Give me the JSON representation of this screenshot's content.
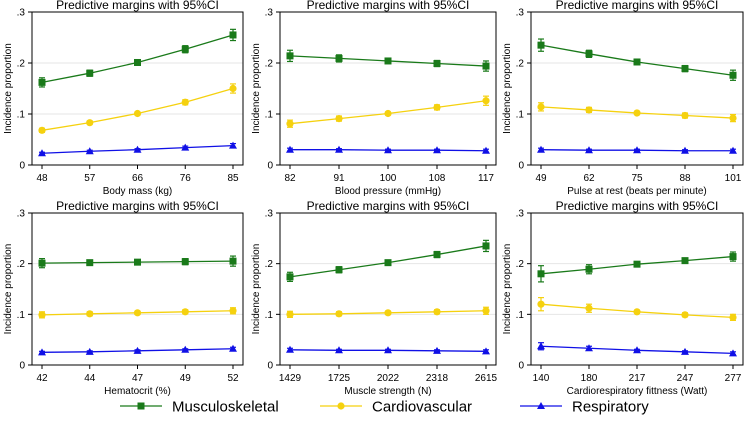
{
  "chart_data": [
    {
      "type": "line",
      "title": "Predictive margins with 95%CI",
      "xlabel": "Body mass (kg)",
      "ylabel": "Incidence proportion",
      "categories": [
        "48",
        "57",
        "66",
        "76",
        "85"
      ],
      "ylim": [
        0,
        0.3
      ],
      "yticks": [
        0,
        0.1,
        0.2,
        0.3
      ],
      "ytick_labels": [
        "0",
        ".1",
        ".2",
        ".3"
      ],
      "series": [
        {
          "name": "Musculoskeletal",
          "values": [
            0.162,
            0.18,
            0.201,
            0.227,
            0.255
          ],
          "ci": [
            0.009,
            0.006,
            0.004,
            0.007,
            0.011
          ]
        },
        {
          "name": "Cardiovascular",
          "values": [
            0.068,
            0.083,
            0.101,
            0.123,
            0.15
          ],
          "ci": [
            0.004,
            0.003,
            0.003,
            0.005,
            0.009
          ]
        },
        {
          "name": "Respiratory",
          "values": [
            0.023,
            0.027,
            0.03,
            0.034,
            0.038
          ],
          "ci": [
            0.002,
            0.002,
            0.002,
            0.003,
            0.004
          ]
        }
      ]
    },
    {
      "type": "line",
      "title": "Predictive margins with 95%CI",
      "xlabel": "Blood pressure (mmHg)",
      "ylabel": "Incidence proportion",
      "categories": [
        "82",
        "91",
        "100",
        "108",
        "117"
      ],
      "ylim": [
        0,
        0.3
      ],
      "yticks": [
        0,
        0.1,
        0.2,
        0.3
      ],
      "ytick_labels": [
        "0",
        ".1",
        ".2",
        ".3"
      ],
      "series": [
        {
          "name": "Musculoskeletal",
          "values": [
            0.214,
            0.209,
            0.204,
            0.199,
            0.194
          ],
          "ci": [
            0.011,
            0.007,
            0.004,
            0.006,
            0.01
          ]
        },
        {
          "name": "Cardiovascular",
          "values": [
            0.081,
            0.091,
            0.101,
            0.113,
            0.126
          ],
          "ci": [
            0.007,
            0.005,
            0.003,
            0.005,
            0.009
          ]
        },
        {
          "name": "Respiratory",
          "values": [
            0.03,
            0.03,
            0.029,
            0.029,
            0.028
          ],
          "ci": [
            0.003,
            0.002,
            0.002,
            0.002,
            0.003
          ]
        }
      ]
    },
    {
      "type": "line",
      "title": "Predictive margins with 95%CI",
      "xlabel": "Pulse at rest (beats per minute)",
      "ylabel": "Incidence proportion",
      "categories": [
        "49",
        "62",
        "75",
        "88",
        "101"
      ],
      "ylim": [
        0,
        0.3
      ],
      "yticks": [
        0,
        0.1,
        0.2,
        0.3
      ],
      "ytick_labels": [
        "0",
        ".1",
        ".2",
        ".3"
      ],
      "series": [
        {
          "name": "Musculoskeletal",
          "values": [
            0.235,
            0.218,
            0.202,
            0.189,
            0.176
          ],
          "ci": [
            0.012,
            0.007,
            0.004,
            0.006,
            0.01
          ]
        },
        {
          "name": "Cardiovascular",
          "values": [
            0.114,
            0.108,
            0.102,
            0.097,
            0.092
          ],
          "ci": [
            0.008,
            0.005,
            0.003,
            0.005,
            0.007
          ]
        },
        {
          "name": "Respiratory",
          "values": [
            0.03,
            0.029,
            0.029,
            0.028,
            0.028
          ],
          "ci": [
            0.003,
            0.002,
            0.002,
            0.002,
            0.003
          ]
        }
      ]
    },
    {
      "type": "line",
      "title": "Predictive margins with 95%CI",
      "xlabel": "Hematocrit (%)",
      "ylabel": "Incidence proportion",
      "categories": [
        "42",
        "44",
        "47",
        "49",
        "52"
      ],
      "ylim": [
        0,
        0.3
      ],
      "yticks": [
        0,
        0.1,
        0.2,
        0.3
      ],
      "ytick_labels": [
        "0",
        ".1",
        ".2",
        ".3"
      ],
      "series": [
        {
          "name": "Musculoskeletal",
          "values": [
            0.201,
            0.202,
            0.203,
            0.204,
            0.205
          ],
          "ci": [
            0.009,
            0.005,
            0.004,
            0.006,
            0.01
          ]
        },
        {
          "name": "Cardiovascular",
          "values": [
            0.099,
            0.101,
            0.103,
            0.105,
            0.107
          ],
          "ci": [
            0.006,
            0.004,
            0.003,
            0.004,
            0.006
          ]
        },
        {
          "name": "Respiratory",
          "values": [
            0.025,
            0.026,
            0.028,
            0.03,
            0.032
          ],
          "ci": [
            0.002,
            0.002,
            0.002,
            0.002,
            0.003
          ]
        }
      ]
    },
    {
      "type": "line",
      "title": "Predictive margins with 95%CI",
      "xlabel": "Muscle strength (N)",
      "ylabel": "Incidence proportion",
      "categories": [
        "1429",
        "1725",
        "2022",
        "2318",
        "2615"
      ],
      "ylim": [
        0,
        0.3
      ],
      "yticks": [
        0,
        0.1,
        0.2,
        0.3
      ],
      "ytick_labels": [
        "0",
        ".1",
        ".2",
        ".3"
      ],
      "series": [
        {
          "name": "Musculoskeletal",
          "values": [
            0.174,
            0.188,
            0.202,
            0.218,
            0.235
          ],
          "ci": [
            0.009,
            0.006,
            0.004,
            0.006,
            0.011
          ]
        },
        {
          "name": "Cardiovascular",
          "values": [
            0.1,
            0.101,
            0.103,
            0.105,
            0.107
          ],
          "ci": [
            0.006,
            0.004,
            0.003,
            0.004,
            0.007
          ]
        },
        {
          "name": "Respiratory",
          "values": [
            0.03,
            0.029,
            0.029,
            0.028,
            0.027
          ],
          "ci": [
            0.003,
            0.002,
            0.002,
            0.002,
            0.003
          ]
        }
      ]
    },
    {
      "type": "line",
      "title": "Predictive margins with 95%CI",
      "xlabel": "Cardiorespiratory fittness (Watt)",
      "ylabel": "Incidence proportion",
      "categories": [
        "140",
        "180",
        "217",
        "247",
        "277"
      ],
      "ylim": [
        0,
        0.3
      ],
      "yticks": [
        0,
        0.1,
        0.2,
        0.3
      ],
      "ytick_labels": [
        "0",
        ".1",
        ".2",
        ".3"
      ],
      "series": [
        {
          "name": "Musculoskeletal",
          "values": [
            0.18,
            0.189,
            0.199,
            0.206,
            0.214
          ],
          "ci": [
            0.016,
            0.009,
            0.004,
            0.005,
            0.009
          ]
        },
        {
          "name": "Cardiovascular",
          "values": [
            0.12,
            0.112,
            0.105,
            0.099,
            0.094
          ],
          "ci": [
            0.013,
            0.008,
            0.003,
            0.004,
            0.006
          ]
        },
        {
          "name": "Respiratory",
          "values": [
            0.037,
            0.033,
            0.029,
            0.026,
            0.023
          ],
          "ci": [
            0.007,
            0.004,
            0.002,
            0.002,
            0.003
          ]
        }
      ]
    }
  ],
  "legend": {
    "items": [
      {
        "label": "Musculoskeletal",
        "color": "#1a7a1a",
        "marker": "square"
      },
      {
        "label": "Cardiovascular",
        "color": "#f5d10f",
        "marker": "circle"
      },
      {
        "label": "Respiratory",
        "color": "#1010e6",
        "marker": "triangle"
      }
    ]
  },
  "colors": {
    "Musculoskeletal": "#1a7a1a",
    "Cardiovascular": "#f5d10f",
    "Respiratory": "#1010e6",
    "grid": "#e6e6e6",
    "frame": "#000000"
  }
}
